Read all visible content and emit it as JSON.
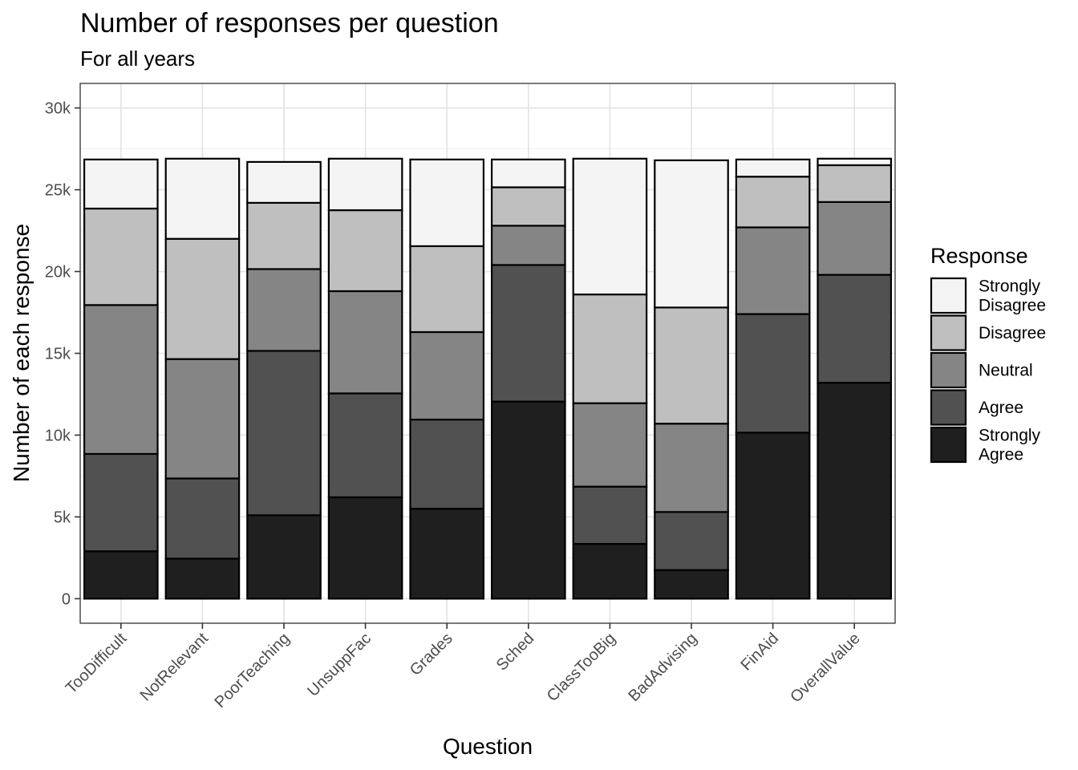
{
  "chart_data": {
    "type": "bar",
    "stacked": true,
    "title": "Number of responses per question",
    "subtitle": "For all years",
    "xlabel": "Question",
    "ylabel": "Number of each response",
    "ylim": [
      -1500,
      31500
    ],
    "yticks": [
      0,
      5000,
      10000,
      15000,
      20000,
      25000,
      30000
    ],
    "ytick_labels": [
      "0",
      "5k",
      "10k",
      "15k",
      "20k",
      "25k",
      "30k"
    ],
    "grid": true,
    "legend": {
      "title": "Response",
      "position": "right"
    },
    "categories": [
      "TooDifficult",
      "NotRelevant",
      "PoorTeaching",
      "UnsuppFac",
      "Grades",
      "Sched",
      "ClassTooBig",
      "BadAdvising",
      "FinAid",
      "OverallValue"
    ],
    "series": [
      {
        "name": "Strongly Agree",
        "color": "#1f1f1f",
        "values": [
          2900,
          2450,
          5100,
          6200,
          5500,
          12050,
          3350,
          1750,
          10150,
          13200
        ]
      },
      {
        "name": "Agree",
        "color": "#515151",
        "values": [
          5950,
          4900,
          10050,
          6350,
          5450,
          8350,
          3500,
          3550,
          7250,
          6600
        ]
      },
      {
        "name": "Neutral",
        "color": "#858585",
        "values": [
          9100,
          7300,
          5000,
          6250,
          5350,
          2400,
          5100,
          5400,
          5300,
          4450
        ]
      },
      {
        "name": "Disagree",
        "color": "#bfbfbf",
        "values": [
          5900,
          7350,
          4050,
          4950,
          5250,
          2350,
          6650,
          7100,
          3100,
          2250
        ]
      },
      {
        "name": "Strongly Disagree",
        "color": "#f4f4f4",
        "values": [
          3000,
          4900,
          2500,
          3150,
          5300,
          1700,
          8300,
          9000,
          1050,
          400
        ]
      }
    ]
  }
}
